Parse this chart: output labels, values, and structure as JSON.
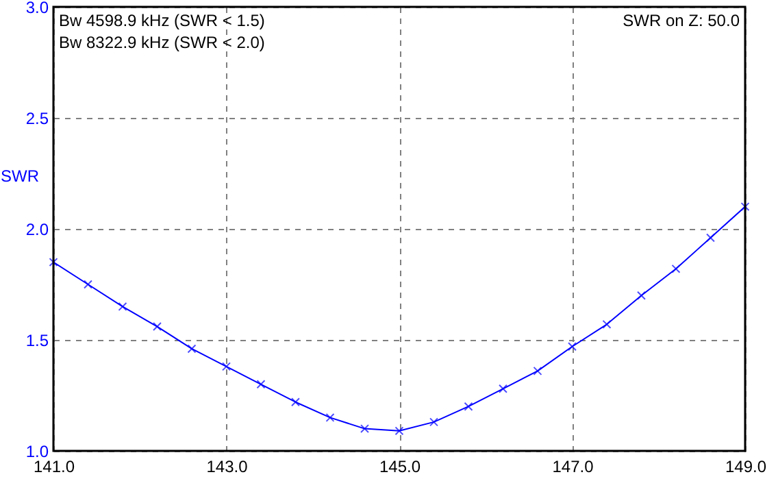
{
  "chart_data": {
    "type": "line",
    "ylabel": "SWR",
    "annotations": [
      "Bw 4598.9 kHz (SWR < 1.5)",
      "Bw 8322.9 kHz (SWR < 2.0)",
      "SWR on Z: 50.0"
    ],
    "x": [
      141.0,
      141.4,
      141.8,
      142.2,
      142.6,
      143.0,
      143.4,
      143.8,
      144.2,
      144.6,
      145.0,
      145.4,
      145.8,
      146.2,
      146.6,
      147.0,
      147.4,
      147.8,
      148.2,
      148.6,
      149.0
    ],
    "series": [
      {
        "color": "#0000ff",
        "values": [
          1.85,
          1.75,
          1.65,
          1.56,
          1.46,
          1.38,
          1.3,
          1.22,
          1.15,
          1.1,
          1.09,
          1.13,
          1.2,
          1.28,
          1.36,
          1.47,
          1.57,
          1.7,
          1.82,
          1.96,
          2.1
        ]
      }
    ],
    "xlim": [
      141,
      149
    ],
    "xticks": [
      {
        "value": 141,
        "label": "141.0"
      },
      {
        "value": 143,
        "label": "143.0"
      },
      {
        "value": 145,
        "label": "145.0"
      },
      {
        "value": 147,
        "label": "147.0"
      },
      {
        "value": 149,
        "label": "149.0"
      }
    ],
    "ylim": [
      1,
      3
    ],
    "yticks": [
      {
        "value": 1,
        "label": "1.0"
      },
      {
        "value": 1.5,
        "label": "1.5"
      },
      {
        "value": 2,
        "label": "2.0"
      },
      {
        "value": 2.5,
        "label": "2.5"
      },
      {
        "value": 3,
        "label": "3.0"
      }
    ],
    "grid": true,
    "marker": "cross",
    "line_style": "solid"
  }
}
